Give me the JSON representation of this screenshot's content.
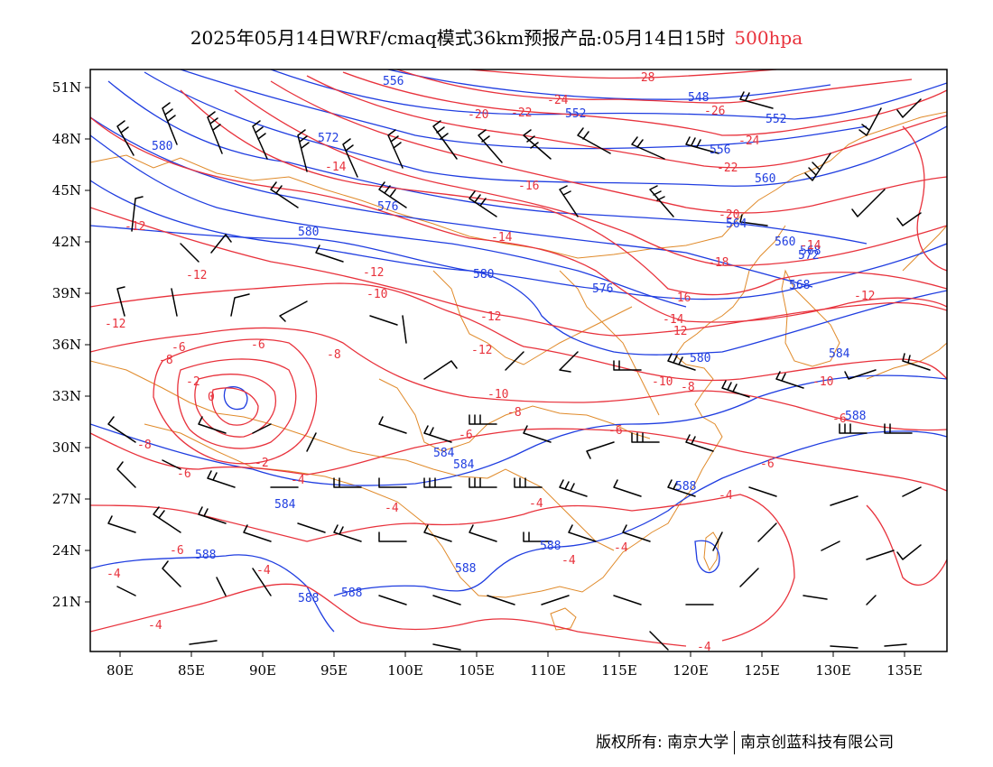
{
  "title": {
    "main": "2025年05月14日WRF/cmaq模式36km预报产品:05月14日15时",
    "level": "500hpa"
  },
  "colors": {
    "height_contour": "#1f3de0",
    "temperature_contour": "#e8323c",
    "coastline_border": "#e08a2a",
    "wind_barb": "#000000",
    "frame": "#000000"
  },
  "axes": {
    "lon_ticks": [
      "80E",
      "85E",
      "90E",
      "95E",
      "100E",
      "105E",
      "110E",
      "115E",
      "120E",
      "125E",
      "130E",
      "135E"
    ],
    "lat_ticks": [
      "51N",
      "48N",
      "45N",
      "42N",
      "39N",
      "36N",
      "33N",
      "30N",
      "27N",
      "24N",
      "21N"
    ]
  },
  "height_labels": [
    "556",
    "548",
    "552",
    "552",
    "556",
    "560",
    "564",
    "568",
    "572",
    "576",
    "580",
    "580",
    "580",
    "576",
    "580",
    "584",
    "584",
    "584",
    "584",
    "588",
    "588",
    "588",
    "588",
    "588",
    "588",
    "588",
    "560",
    "572",
    "568"
  ],
  "temperature_labels": [
    "-28",
    "-26",
    "-24",
    "-24",
    "-22",
    "-22",
    "-20",
    "-20",
    "-18",
    "-16",
    "-16",
    "-14",
    "-14",
    "-14",
    "-14",
    "-12",
    "-12",
    "-12",
    "-12",
    "-12",
    "-12",
    "-12",
    "-12",
    "-10",
    "-10",
    "-10",
    "-10",
    "-8",
    "-8",
    "-8",
    "-8",
    "-8",
    "-6",
    "-6",
    "-6",
    "-6",
    "-6",
    "-6",
    "-6",
    "-4",
    "-4",
    "-4",
    "-4",
    "-4",
    "-4",
    "-4",
    "-4",
    "-4",
    "-4",
    "-2",
    "-2",
    "0",
    "-6"
  ],
  "footer": {
    "copyright": "版权所有: 南京大学",
    "company": "南京创蓝科技有限公司"
  }
}
